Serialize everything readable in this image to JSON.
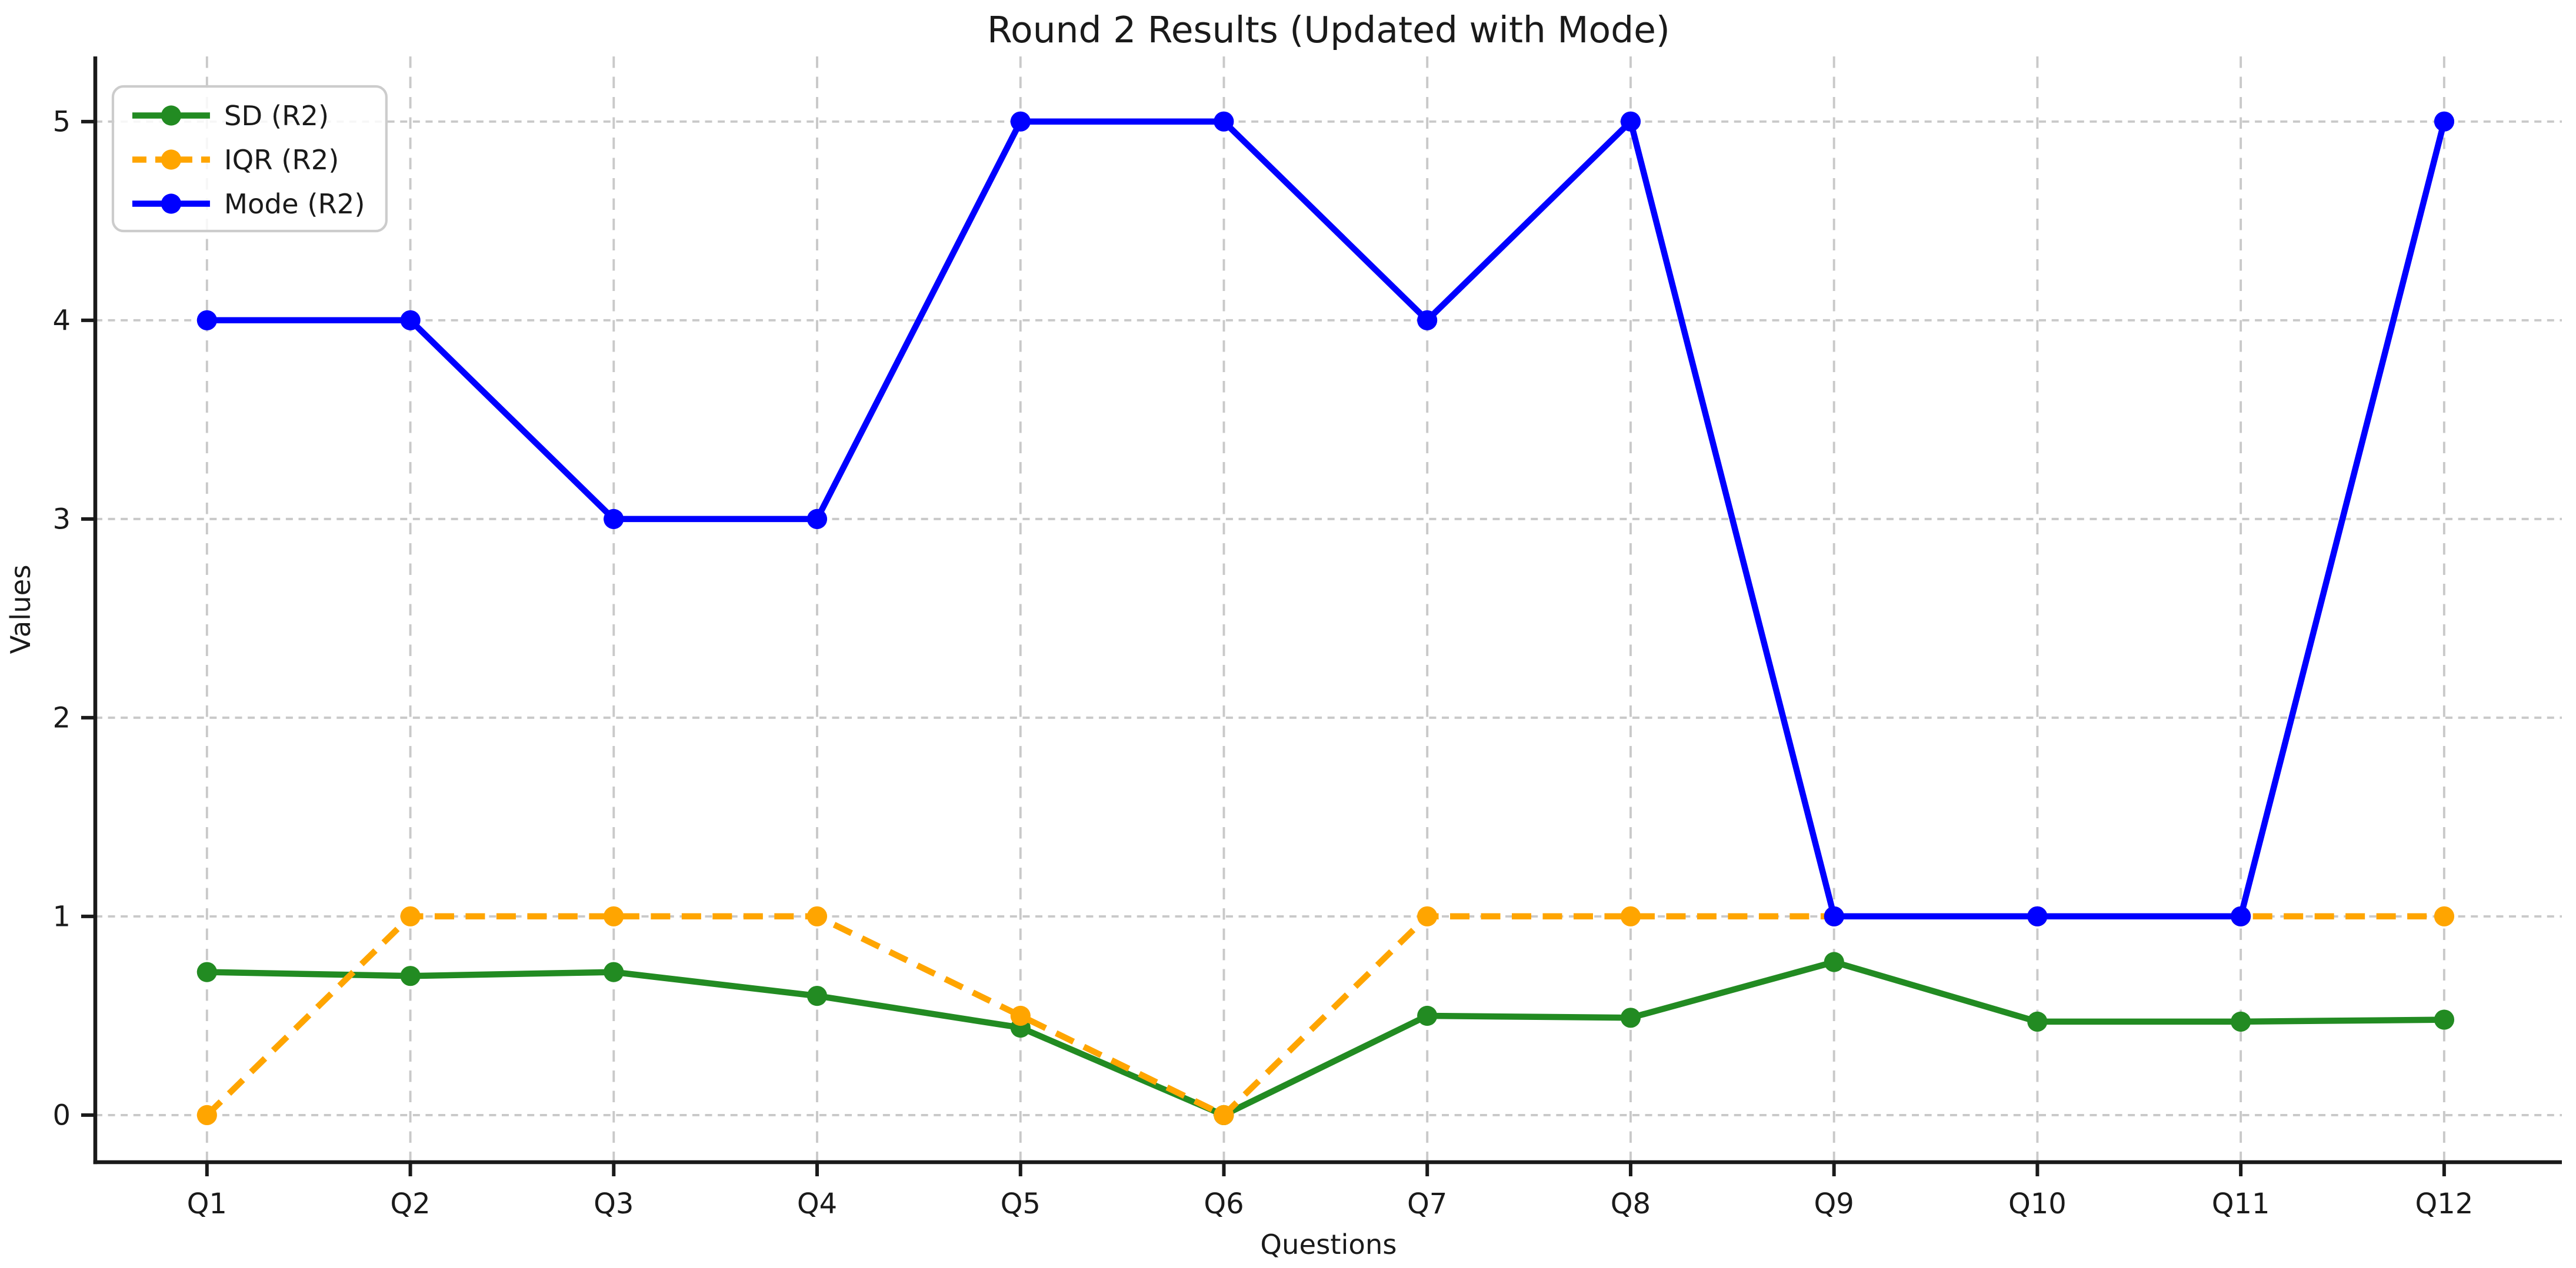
{
  "figure": {
    "background": "#ffffff"
  },
  "chart_data": {
    "type": "line",
    "title": "Round 2 Results (Updated with Mode)",
    "xlabel": "Questions",
    "ylabel": "Values",
    "categories": [
      "Q1",
      "Q2",
      "Q3",
      "Q4",
      "Q5",
      "Q6",
      "Q7",
      "Q8",
      "Q9",
      "Q10",
      "Q11",
      "Q12"
    ],
    "yticks": [
      0,
      1,
      2,
      3,
      4,
      5
    ],
    "ylim": [
      -0.25,
      5.35
    ],
    "grid": true,
    "grid_color": "#c9c9c9",
    "grid_style": "dashed",
    "spine_color": "#1a1a1a",
    "legend_position": "upper left",
    "series": [
      {
        "name": "SD (R2)",
        "color": "#228B22",
        "line_style": "solid",
        "marker": "circle",
        "values": [
          0.72,
          0.7,
          0.72,
          0.6,
          0.44,
          0.0,
          0.5,
          0.49,
          0.77,
          0.47,
          0.47,
          0.48
        ]
      },
      {
        "name": "IQR (R2)",
        "color": "#FFA500",
        "line_style": "dashed",
        "marker": "circle",
        "values": [
          0,
          1,
          1,
          1,
          0.5,
          0,
          1,
          1,
          1,
          1,
          1,
          1
        ]
      },
      {
        "name": "Mode (R2)",
        "color": "#0000FF",
        "line_style": "solid",
        "marker": "circle",
        "values": [
          4,
          4,
          3,
          3,
          5,
          5,
          4,
          5,
          1,
          1,
          1,
          5
        ]
      }
    ]
  }
}
